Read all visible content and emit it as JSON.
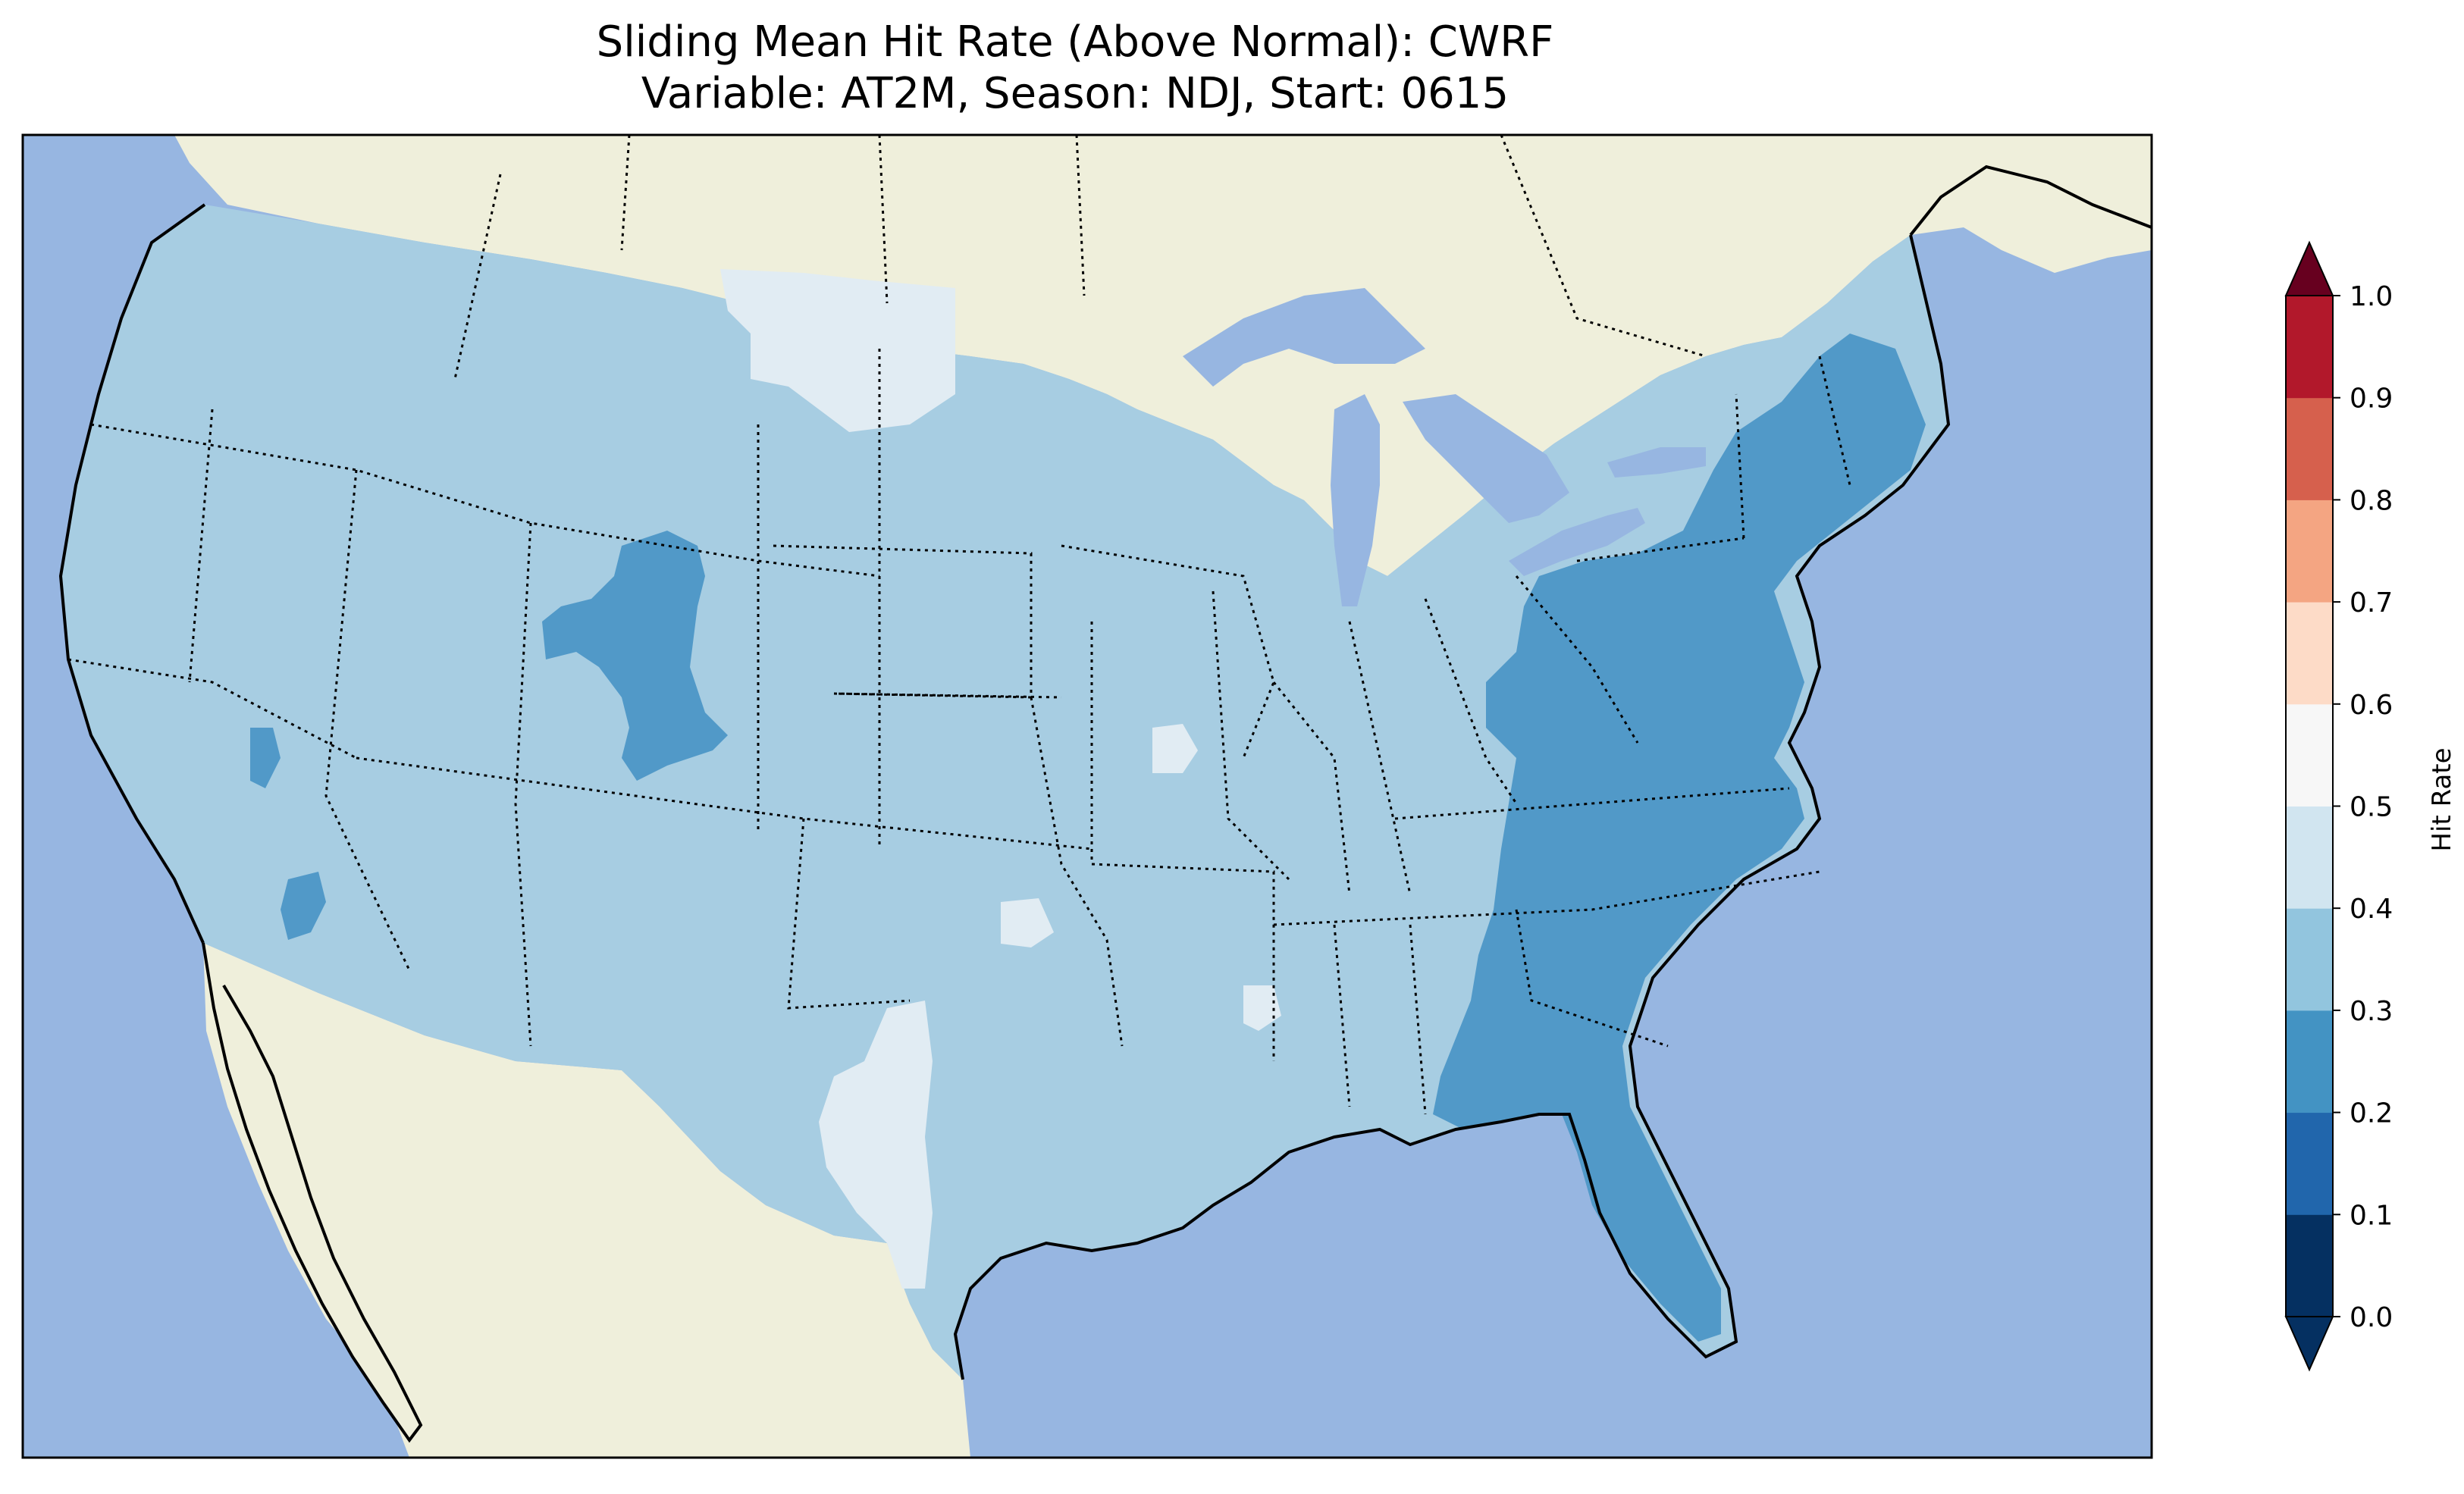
{
  "title": {
    "line1": "Sliding Mean Hit Rate (Above Normal): CWRF",
    "line2": "Variable: AT2M, Season: NDJ, Start: 0615"
  },
  "map": {
    "projection": "lambert-conformal",
    "region": "Contiguous United States",
    "ocean_color": "#97b6e1",
    "land_color": "#efefdb",
    "boundaries": [
      "coastlines",
      "state-borders-dotted",
      "country-borders"
    ]
  },
  "field": {
    "dominant_class": "0.3-0.4",
    "regions": [
      {
        "name": "Western and Central US",
        "class": "0.3-0.4"
      },
      {
        "name": "Eastern Seaboard",
        "class": "0.2-0.3"
      },
      {
        "name": "Southeast and Florida",
        "class": "0.2-0.3"
      },
      {
        "name": "Colorado-Wyoming Rockies",
        "class": "0.2-0.3"
      },
      {
        "name": "Northern Montana",
        "class": "0.4-0.5"
      },
      {
        "name": "West Texas",
        "class": "0.4-0.5"
      }
    ]
  },
  "colorbar": {
    "label": "Hit Rate",
    "ticks": [
      "0.0",
      "0.1",
      "0.2",
      "0.3",
      "0.4",
      "0.5",
      "0.6",
      "0.7",
      "0.8",
      "0.9",
      "1.0"
    ],
    "colors": [
      "#053061",
      "#2166ac",
      "#4393c3",
      "#92c5de",
      "#d1e5f0",
      "#f7f7f7",
      "#fddbc7",
      "#f4a582",
      "#d6604d",
      "#b2182b"
    ],
    "under_color": "#053061",
    "over_color": "#67001f",
    "extend": "both"
  },
  "legend_colors": {
    "class_0.2_0.3": "#5199c8",
    "class_0.3_0.4": "#a7cde2",
    "class_0.4_0.5": "#e1ecf3"
  }
}
